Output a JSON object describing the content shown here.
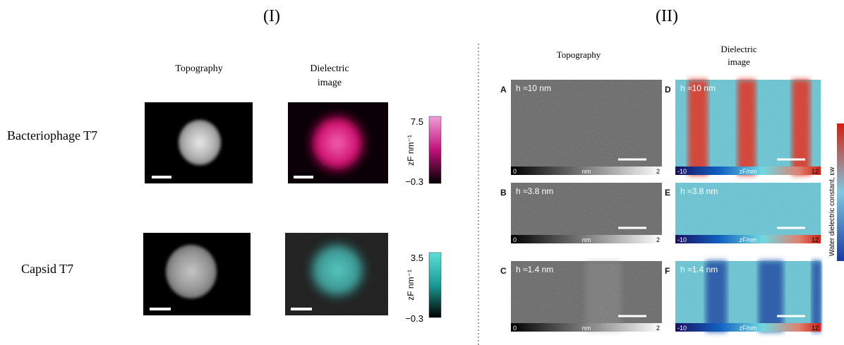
{
  "part_i": {
    "label": "(I)",
    "headers": {
      "topography": "Topography",
      "dielectric": [
        "Dielectric",
        "image"
      ]
    },
    "rows": [
      {
        "sample": "Bacteriophage T7",
        "colorbar": {
          "max": "7.5",
          "min": "−0.3",
          "unit": "zF nm⁻¹"
        }
      },
      {
        "sample": "Capsid T7",
        "colorbar": {
          "max": "3.5",
          "min": "−0.3",
          "unit": "zF nm⁻¹"
        }
      }
    ]
  },
  "part_ii": {
    "label": "(II)",
    "headers": {
      "topography": "Topography",
      "dielectric": [
        "Dielectric",
        "image"
      ]
    },
    "rows": [
      {
        "height": "h ≈10 nm",
        "topography": {
          "panel": "A",
          "scale": [
            "0",
            "nm",
            "2"
          ]
        },
        "dielectric": {
          "panel": "D",
          "scale": [
            "-10",
            "zF/nm",
            "12"
          ]
        }
      },
      {
        "height": "h ≈3.8 nm",
        "topography": {
          "panel": "B",
          "scale": [
            "0",
            "nm",
            "2"
          ]
        },
        "dielectric": {
          "panel": "E",
          "scale": [
            "-10",
            "zF/nm",
            "12"
          ]
        }
      },
      {
        "height": "h ≈1.4 nm",
        "topography": {
          "panel": "C",
          "scale": [
            "0",
            "nm",
            "2"
          ]
        },
        "dielectric": {
          "panel": "F",
          "scale": [
            "-10",
            "zF/nm",
            "12"
          ]
        }
      }
    ],
    "side_label": "Water dielectric constant, εw"
  }
}
